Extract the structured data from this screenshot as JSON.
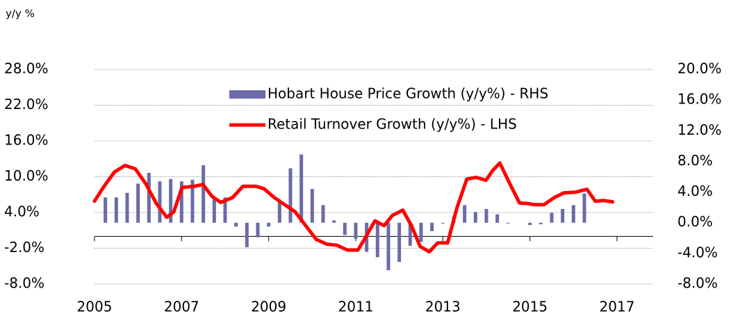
{
  "chart_data": {
    "type": "bar-line",
    "ylabel": "y/y %",
    "xlim": [
      2005,
      2017.83
    ],
    "xticks": [
      2005,
      2007,
      2009,
      2011,
      2013,
      2015,
      2017
    ],
    "ylim": [
      -8,
      28
    ],
    "yticks": [
      {
        "value": 28,
        "label": "28.0%"
      },
      {
        "value": 22,
        "label": "22.0%"
      },
      {
        "value": 16,
        "label": "16.0%"
      },
      {
        "value": 10,
        "label": "10.0%"
      },
      {
        "value": 4,
        "label": "4.0%"
      },
      {
        "value": -2,
        "label": "-2.0%"
      },
      {
        "value": -8,
        "label": "-8.0%"
      }
    ],
    "y2lim": [
      -8,
      20
    ],
    "y2ticks": [
      {
        "value": 20,
        "label": "20.0%"
      },
      {
        "value": 16,
        "label": "16.0%"
      },
      {
        "value": 12,
        "label": "12.0%"
      },
      {
        "value": 8,
        "label": "8.0%"
      },
      {
        "value": 4,
        "label": "4.0%"
      },
      {
        "value": 0,
        "label": "0.0%"
      },
      {
        "value": -4,
        "label": "-4.0%"
      },
      {
        "value": -8,
        "label": "-8.0%"
      }
    ],
    "grid": true,
    "series": [
      {
        "name": "Hobart House Price Growth (y/y%) - RHS",
        "type": "bar",
        "axis": "y2",
        "color": "#6b6ba8",
        "x": [
          2005.25,
          2005.5,
          2005.75,
          2006,
          2006.25,
          2006.5,
          2006.75,
          2007,
          2007.25,
          2007.5,
          2007.75,
          2008,
          2008.25,
          2008.5,
          2008.75,
          2009,
          2009.25,
          2009.5,
          2009.75,
          2010,
          2010.25,
          2010.5,
          2010.75,
          2011,
          2011.25,
          2011.5,
          2011.75,
          2012,
          2012.25,
          2012.5,
          2012.75,
          2013,
          2013.25,
          2013.5,
          2013.75,
          2014,
          2014.25,
          2014.5,
          2014.75,
          2015,
          2015.25,
          2015.5,
          2015.75,
          2016,
          2016.25
        ],
        "values": [
          3.3,
          3.3,
          3.9,
          5.1,
          6.5,
          5.4,
          5.7,
          5.4,
          5.6,
          7.5,
          3.3,
          3.3,
          -0.5,
          -3.2,
          -1.9,
          -0.5,
          2.9,
          7.1,
          8.9,
          4.4,
          2.3,
          0.3,
          -1.6,
          -2.1,
          -3.8,
          -4.5,
          -6.2,
          -5.1,
          -3.0,
          -2.5,
          -1.1,
          -0.1,
          0.8,
          2.3,
          1.4,
          1.8,
          1.1,
          -0.1,
          0,
          -0.3,
          -0.2,
          1.3,
          1.8,
          2.3,
          3.8
        ]
      },
      {
        "name": "Retail Turnover Growth (y/y%) - LHS",
        "type": "line",
        "axis": "y",
        "color": "#ff0000",
        "x": [
          2005,
          2005.22,
          2005.46,
          2005.7,
          2005.94,
          2006.18,
          2006.42,
          2006.66,
          2006.82,
          2007.01,
          2007.3,
          2007.49,
          2007.7,
          2007.9,
          2008.17,
          2008.41,
          2008.7,
          2008.89,
          2009.13,
          2009.37,
          2009.61,
          2009.85,
          2010.09,
          2010.33,
          2010.57,
          2010.81,
          2011.05,
          2011.2,
          2011.44,
          2011.65,
          2011.84,
          2012.08,
          2012.28,
          2012.48,
          2012.69,
          2012.88,
          2013.11,
          2013.32,
          2013.55,
          2013.76,
          2013.99,
          2014.15,
          2014.31,
          2014.52,
          2014.76,
          2014.95,
          2015.11,
          2015.32,
          2015.56,
          2015.78,
          2016.04,
          2016.31,
          2016.5,
          2016.7,
          2016.9
        ],
        "values": [
          5.9,
          8.4,
          10.8,
          11.9,
          11.3,
          8.8,
          5.5,
          3.2,
          4.1,
          8.2,
          8.4,
          8.7,
          6.7,
          5.7,
          6.5,
          8.4,
          8.4,
          8.0,
          6.5,
          5.3,
          4.1,
          1.8,
          -0.5,
          -1.3,
          -1.5,
          -2.3,
          -2.3,
          -0.5,
          2.6,
          1.8,
          3.5,
          4.4,
          1.8,
          -1.7,
          -2.6,
          -1.1,
          -1.1,
          4.7,
          9.6,
          9.9,
          9.4,
          11.1,
          12.3,
          9.1,
          5.6,
          5.5,
          5.3,
          5.3,
          6.5,
          7.3,
          7.4,
          7.9,
          5.9,
          6.0,
          5.8
        ]
      }
    ]
  }
}
